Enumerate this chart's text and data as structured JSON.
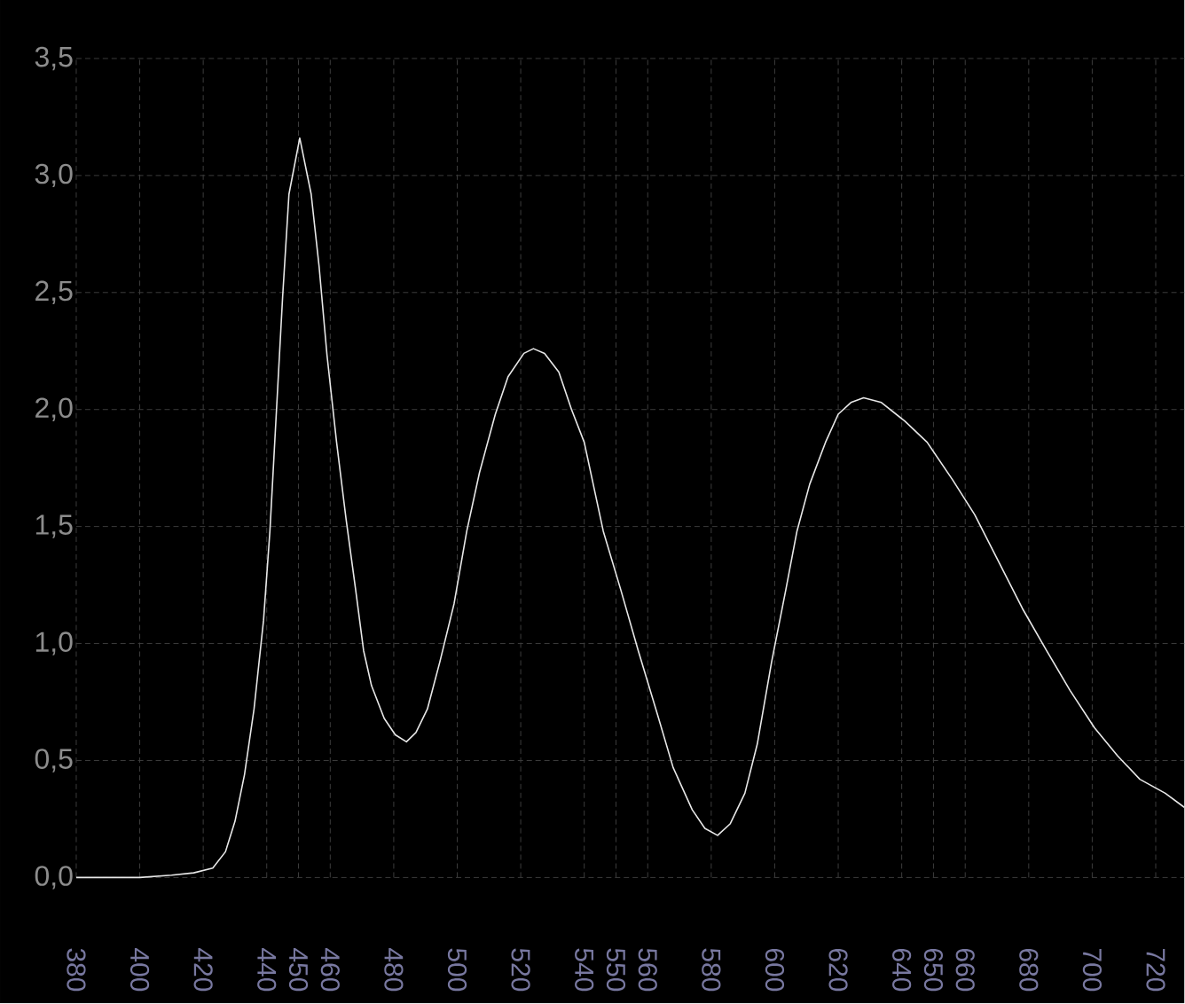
{
  "chart_data": {
    "type": "line",
    "x": [
      380,
      400,
      410,
      417,
      423,
      427,
      430,
      433,
      436,
      439,
      441,
      443,
      445,
      447,
      450.4,
      454,
      456.5,
      459,
      462,
      465,
      468,
      470.5,
      473,
      477,
      480.5,
      484,
      487,
      490.6,
      494.5,
      499,
      503,
      507,
      512,
      516,
      521,
      524,
      527.5,
      532,
      536,
      540,
      546,
      551.5,
      557,
      563,
      568,
      574,
      578,
      582,
      586,
      590.6,
      594.5,
      599,
      603.5,
      607,
      611,
      616,
      620,
      624,
      628,
      633.6,
      641,
      648,
      656,
      663,
      670.5,
      678,
      685.6,
      693,
      700.7,
      708,
      715,
      723,
      729
    ],
    "series": [
      {
        "color": "#e8e8e8",
        "values": [
          0.0,
          0.0,
          0.01,
          0.02,
          0.04,
          0.11,
          0.24,
          0.44,
          0.72,
          1.1,
          1.48,
          1.98,
          2.48,
          2.92,
          3.16,
          2.92,
          2.61,
          2.23,
          1.86,
          1.53,
          1.23,
          0.97,
          0.82,
          0.68,
          0.61,
          0.58,
          0.62,
          0.72,
          0.92,
          1.17,
          1.48,
          1.73,
          1.98,
          2.14,
          2.24,
          2.26,
          2.24,
          2.16,
          2.0,
          1.86,
          1.48,
          1.23,
          0.97,
          0.7,
          0.47,
          0.29,
          0.21,
          0.18,
          0.23,
          0.36,
          0.57,
          0.92,
          1.23,
          1.48,
          1.68,
          1.86,
          1.98,
          2.03,
          2.05,
          2.03,
          1.95,
          1.86,
          1.7,
          1.55,
          1.35,
          1.15,
          0.97,
          0.8,
          0.64,
          0.52,
          0.42,
          0.36,
          0.3
        ]
      }
    ],
    "xlim": [
      380,
      729
    ],
    "ylim": [
      0,
      3.5
    ],
    "xticks": [
      380,
      400,
      420,
      440,
      450,
      460,
      480,
      500,
      520,
      540,
      550,
      560,
      580,
      600,
      620,
      640,
      650,
      660,
      680,
      700,
      720
    ],
    "yticks": [
      {
        "value": 0,
        "label": "0,0"
      },
      {
        "value": 0.5,
        "label": "0,5"
      },
      {
        "value": 1,
        "label": "1,0"
      },
      {
        "value": 1.5,
        "label": "1,5"
      },
      {
        "value": 2,
        "label": "2,0"
      },
      {
        "value": 2.5,
        "label": "2,5"
      },
      {
        "value": 3,
        "label": "3,0"
      },
      {
        "value": 3.5,
        "label": "3,5"
      }
    ],
    "grid": true
  }
}
